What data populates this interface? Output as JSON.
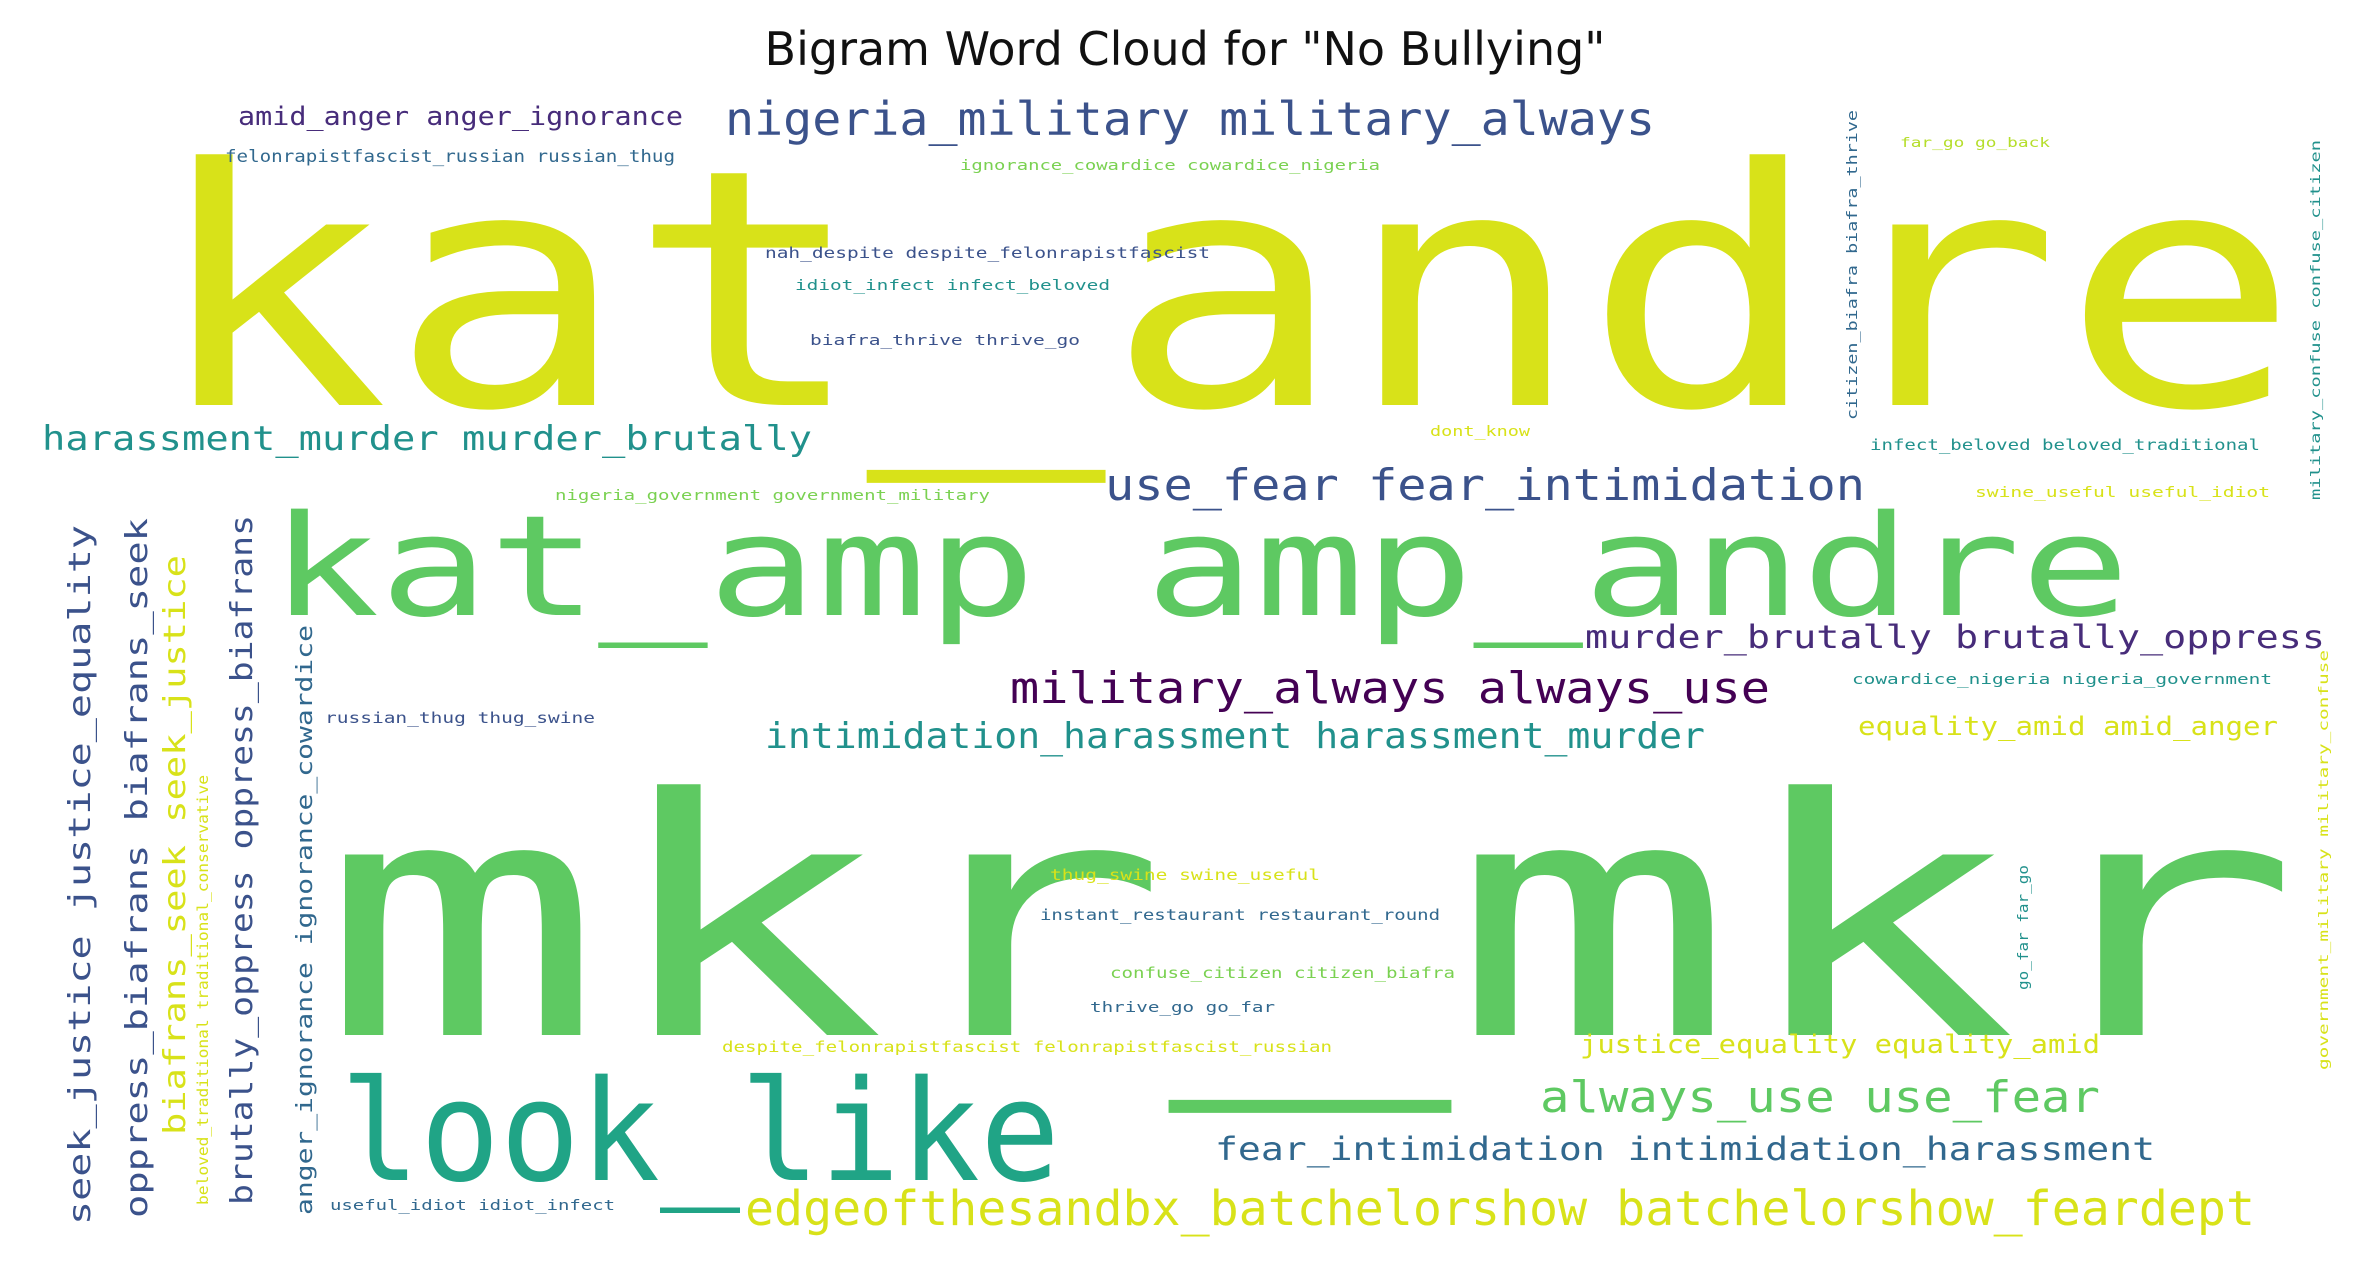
{
  "chart_data": {
    "type": "wordcloud",
    "title": "Bigram Word Cloud for \"No Bullying\"",
    "colormap": "viridis",
    "background": "#ffffff",
    "words": [
      {
        "text": "kat_andre",
        "color": "#d8e219",
        "orientation": "horizontal"
      },
      {
        "text": "mkr_mkr",
        "color": "#5ec962",
        "orientation": "horizontal"
      },
      {
        "text": "kat_amp amp_andre",
        "color": "#5ec962",
        "orientation": "horizontal"
      },
      {
        "text": "look_like",
        "color": "#20a486",
        "orientation": "horizontal"
      },
      {
        "text": "edgeofthesandbx_batchelorshow batchelorshow_feardept",
        "color": "#d8e219",
        "orientation": "horizontal"
      },
      {
        "text": "nigeria_military military_always",
        "color": "#3b528b",
        "orientation": "horizontal"
      },
      {
        "text": "use_fear fear_intimidation",
        "color": "#3b528b",
        "orientation": "horizontal"
      },
      {
        "text": "military_always always_use",
        "color": "#440154",
        "orientation": "horizontal"
      },
      {
        "text": "intimidation_harassment harassment_murder",
        "color": "#21918c",
        "orientation": "horizontal"
      },
      {
        "text": "harassment_murder murder_brutally",
        "color": "#21918c",
        "orientation": "horizontal"
      },
      {
        "text": "murder_brutally brutally_oppress",
        "color": "#472c7a",
        "orientation": "horizontal"
      },
      {
        "text": "always_use use_fear",
        "color": "#5ec962",
        "orientation": "horizontal"
      },
      {
        "text": "fear_intimidation intimidation_harassment",
        "color": "#31688e",
        "orientation": "horizontal"
      },
      {
        "text": "justice_equality equality_amid",
        "color": "#d8e219",
        "orientation": "horizontal"
      },
      {
        "text": "equality_amid amid_anger",
        "color": "#d8e219",
        "orientation": "horizontal"
      },
      {
        "text": "amid_anger anger_ignorance",
        "color": "#472c7a",
        "orientation": "horizontal"
      },
      {
        "text": "felonrapistfascist_russian russian_thug",
        "color": "#31688e",
        "orientation": "horizontal"
      },
      {
        "text": "ignorance_cowardice cowardice_nigeria",
        "color": "#7ad151",
        "orientation": "horizontal"
      },
      {
        "text": "nah_despite despite_felonrapistfascist",
        "color": "#3b528b",
        "orientation": "horizontal"
      },
      {
        "text": "idiot_infect infect_beloved",
        "color": "#21918c",
        "orientation": "horizontal"
      },
      {
        "text": "biafra_thrive thrive_go",
        "color": "#3b528b",
        "orientation": "horizontal"
      },
      {
        "text": "far_go go_back",
        "color": "#b5de2b",
        "orientation": "horizontal"
      },
      {
        "text": "dont_know",
        "color": "#d8e219",
        "orientation": "horizontal"
      },
      {
        "text": "infect_beloved beloved_traditional",
        "color": "#21918c",
        "orientation": "horizontal"
      },
      {
        "text": "nigeria_government government_military",
        "color": "#7ad151",
        "orientation": "horizontal"
      },
      {
        "text": "swine_useful useful_idiot",
        "color": "#d8e219",
        "orientation": "horizontal"
      },
      {
        "text": "cowardice_nigeria nigeria_government",
        "color": "#21918c",
        "orientation": "horizontal"
      },
      {
        "text": "russian_thug thug_swine",
        "color": "#3b528b",
        "orientation": "horizontal"
      },
      {
        "text": "thug_swine swine_useful",
        "color": "#d8e219",
        "orientation": "horizontal"
      },
      {
        "text": "instant_restaurant restaurant_round",
        "color": "#31688e",
        "orientation": "horizontal"
      },
      {
        "text": "confuse_citizen citizen_biafra",
        "color": "#7ad151",
        "orientation": "horizontal"
      },
      {
        "text": "thrive_go go_far",
        "color": "#31688e",
        "orientation": "horizontal"
      },
      {
        "text": "despite_felonrapistfascist felonrapistfascist_russian",
        "color": "#d8e219",
        "orientation": "horizontal"
      },
      {
        "text": "useful_idiot idiot_infect",
        "color": "#31688e",
        "orientation": "horizontal"
      },
      {
        "text": "seek_justice justice_equality",
        "color": "#3b528b",
        "orientation": "vertical"
      },
      {
        "text": "oppress_biafrans biafrans_seek",
        "color": "#3b528b",
        "orientation": "vertical"
      },
      {
        "text": "biafrans_seek seek_justice",
        "color": "#d8e219",
        "orientation": "vertical"
      },
      {
        "text": "beloved_traditional traditional_conservative",
        "color": "#d8e219",
        "orientation": "vertical"
      },
      {
        "text": "brutally_oppress oppress_biafrans",
        "color": "#3b528b",
        "orientation": "vertical"
      },
      {
        "text": "anger_ignorance ignorance_cowardice",
        "color": "#31688e",
        "orientation": "vertical"
      },
      {
        "text": "citizen_biafra biafra_thrive",
        "color": "#31688e",
        "orientation": "vertical"
      },
      {
        "text": "go_far far_go",
        "color": "#21918c",
        "orientation": "vertical"
      },
      {
        "text": "military_confuse confuse_citizen",
        "color": "#21918c",
        "orientation": "vertical"
      },
      {
        "text": "government_military military_confuse",
        "color": "#d8e219",
        "orientation": "vertical"
      }
    ]
  }
}
